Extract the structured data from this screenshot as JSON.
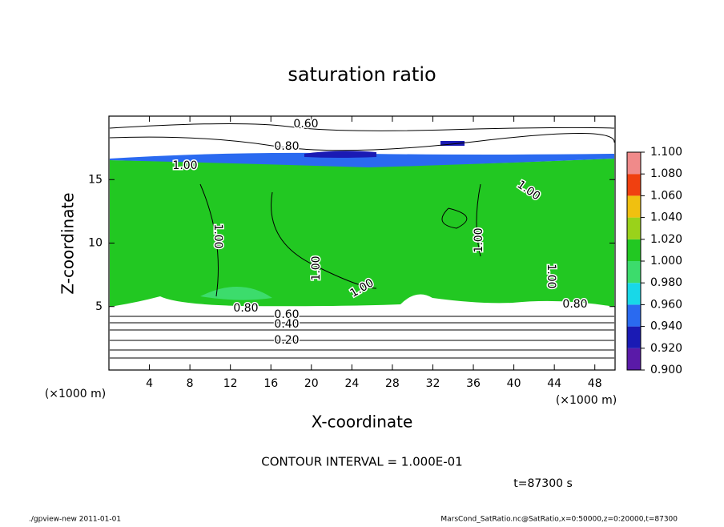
{
  "chart_data": {
    "type": "contour",
    "title": "saturation ratio",
    "x_label": "X-coordinate",
    "y_label": "Z-coordinate",
    "x_unit": "(×1000 m)",
    "y_unit": "(×1000 m)",
    "xlim": [
      0,
      50
    ],
    "xticks": [
      4,
      8,
      12,
      16,
      20,
      24,
      28,
      32,
      36,
      40,
      44,
      48
    ],
    "ylim": [
      0,
      20
    ],
    "yticks": [
      5,
      10,
      15
    ],
    "contour_labels": [
      "0.60",
      "0.80",
      "1.00",
      "1.00",
      "1.00",
      "1.00",
      "1.00",
      "1.00",
      "1.00",
      "0.80",
      "0.60",
      "0.40",
      "0.20",
      "0.80"
    ],
    "colorbar": {
      "ticks": [
        {
          "value": 0.9,
          "label": "0.900"
        },
        {
          "value": 0.92,
          "label": "0.920"
        },
        {
          "value": 0.94,
          "label": "0.940"
        },
        {
          "value": 0.96,
          "label": "0.960"
        },
        {
          "value": 0.98,
          "label": "0.980"
        },
        {
          "value": 1.0,
          "label": "1.000"
        },
        {
          "value": 1.02,
          "label": "1.020"
        },
        {
          "value": 1.04,
          "label": "1.040"
        },
        {
          "value": 1.06,
          "label": "1.060"
        },
        {
          "value": 1.08,
          "label": "1.080"
        },
        {
          "value": 1.1,
          "label": "1.100"
        }
      ],
      "colors": [
        "#5a1aa8",
        "#1a1ab4",
        "#2a6af0",
        "#18d8e8",
        "#3cdc6c",
        "#22c822",
        "#9ad21a",
        "#f0c010",
        "#f04010",
        "#f08a8a"
      ]
    },
    "annotation": "CONTOUR INTERVAL = 1.000E-01",
    "time_label": "t=87300 s"
  },
  "footer": {
    "left": "./gpview-new   2011-01-01",
    "right": "MarsCond_SatRatio.nc@SatRatio,x=0:50000,z=0:20000,t=87300"
  }
}
